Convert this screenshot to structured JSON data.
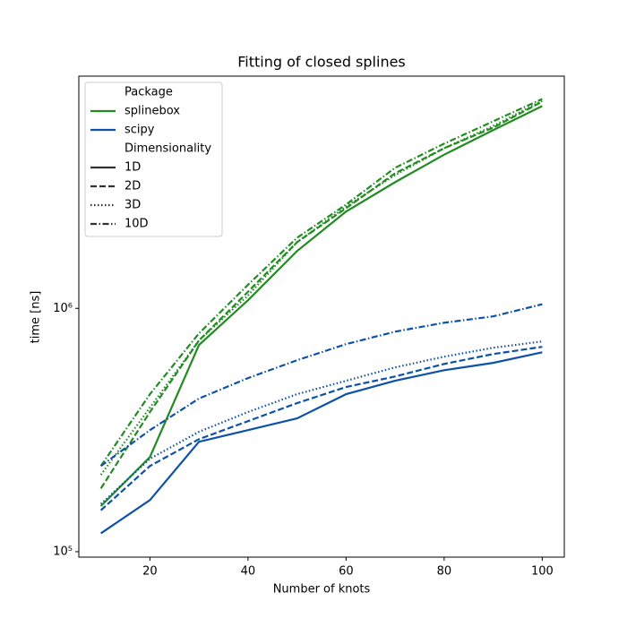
{
  "chart_data": {
    "type": "line",
    "title": "Fitting of closed splines",
    "xlabel": "Number of knots",
    "ylabel": "time [ns]",
    "log_y": true,
    "x": [
      10,
      20,
      30,
      40,
      50,
      60,
      70,
      80,
      90,
      100
    ],
    "xlim": [
      5.5,
      104.5
    ],
    "xticks": [
      20,
      40,
      60,
      80,
      100
    ],
    "ylim": [
      95000,
      9000000
    ],
    "yticks": [
      {
        "value": 100000,
        "label": "10⁵"
      },
      {
        "value": 1000000,
        "label": "10⁶"
      }
    ],
    "legend": {
      "position": "upper left",
      "hue_title": "Package",
      "hue": [
        {
          "name": "splinebox",
          "color": "#228b22"
        },
        {
          "name": "scipy",
          "color": "#0d52a6"
        }
      ],
      "style_title": "Dimensionality",
      "styles": [
        {
          "name": "1D",
          "dash": "none"
        },
        {
          "name": "2D",
          "dash": "7,3"
        },
        {
          "name": "3D",
          "dash": "1.5,2.5"
        },
        {
          "name": "10D",
          "dash": "7,2.5,1.5,2.5"
        }
      ]
    },
    "series": [
      {
        "package": "splinebox",
        "dimensionality": "1D",
        "values": [
          154000,
          245000,
          707000,
          1080000,
          1720000,
          2500000,
          3300000,
          4280000,
          5400000,
          6780000
        ]
      },
      {
        "package": "splinebox",
        "dimensionality": "2D",
        "values": [
          182000,
          375000,
          738000,
          1170000,
          1870000,
          2580000,
          3590000,
          4550000,
          5530000,
          7070000
        ]
      },
      {
        "package": "splinebox",
        "dimensionality": "3D",
        "values": [
          207000,
          391000,
          738000,
          1130000,
          1870000,
          2620000,
          3530000,
          4550000,
          5620000,
          7130000
        ]
      },
      {
        "package": "splinebox",
        "dimensionality": "10D",
        "values": [
          225000,
          444000,
          789000,
          1250000,
          1950000,
          2670000,
          3780000,
          4750000,
          5870000,
          7250000
        ]
      },
      {
        "package": "scipy",
        "dimensionality": "1D",
        "values": [
          119000,
          163000,
          283000,
          316000,
          353000,
          444000,
          504000,
          557000,
          597000,
          660000
        ]
      },
      {
        "package": "scipy",
        "dimensionality": "2D",
        "values": [
          148000,
          225000,
          290000,
          344000,
          408000,
          475000,
          525000,
          591000,
          649000,
          695000
        ]
      },
      {
        "package": "scipy",
        "dimensionality": "3D",
        "values": [
          157000,
          241000,
          311000,
          375000,
          444000,
          504000,
          572000,
          633000,
          689000,
          731000
        ]
      },
      {
        "package": "scipy",
        "dimensionality": "10D",
        "values": [
          225000,
          316000,
          426000,
          517000,
          612000,
          713000,
          802000,
          873000,
          927000,
          1040000
        ]
      }
    ]
  }
}
